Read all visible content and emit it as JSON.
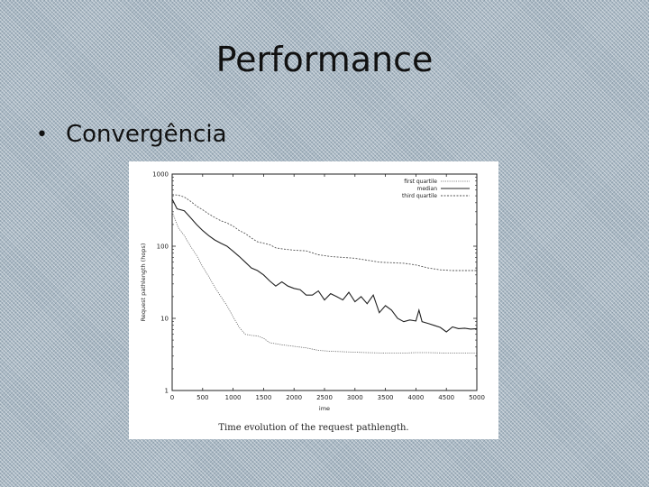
{
  "slide": {
    "title": "Performance",
    "bullet": "Convergência"
  },
  "figure": {
    "caption": "Time evolution of the request pathlength."
  },
  "chart_data": {
    "type": "line",
    "xlabel": "ime",
    "ylabel": "Request pathlength (hops)",
    "xlim": [
      0,
      5000
    ],
    "ylim": [
      1,
      1000
    ],
    "yscale": "log",
    "x_ticks": [
      "0",
      "500",
      "1000",
      "1500",
      "2000",
      "2500",
      "3000",
      "3500",
      "4000",
      "4500",
      "5000"
    ],
    "y_ticks": [
      "1",
      "10",
      "100",
      "1000"
    ],
    "legend_position": "top-right",
    "series": [
      {
        "name": "first quartile",
        "x": [
          0,
          100,
          200,
          300,
          400,
          500,
          600,
          700,
          800,
          900,
          1000,
          1100,
          1200,
          1300,
          1400,
          1500,
          1600,
          1800,
          2000,
          2200,
          2400,
          2600,
          2800,
          3000,
          3200,
          3500,
          3800,
          4000,
          4200,
          4500,
          4800,
          5000
        ],
        "y": [
          300,
          180,
          140,
          100,
          75,
          52,
          38,
          27,
          20,
          15,
          10.5,
          7.5,
          6,
          5.8,
          5.7,
          5.3,
          4.6,
          4.3,
          4.1,
          3.9,
          3.6,
          3.5,
          3.45,
          3.4,
          3.35,
          3.3,
          3.3,
          3.35,
          3.35,
          3.3,
          3.3,
          3.3
        ]
      },
      {
        "name": "median",
        "x": [
          0,
          80,
          200,
          300,
          400,
          500,
          600,
          700,
          800,
          900,
          1000,
          1100,
          1200,
          1300,
          1400,
          1500,
          1600,
          1700,
          1800,
          1900,
          2000,
          2100,
          2200,
          2300,
          2400,
          2500,
          2600,
          2700,
          2800,
          2900,
          3000,
          3100,
          3200,
          3300,
          3400,
          3500,
          3600,
          3700,
          3800,
          3900,
          4000,
          4050,
          4100,
          4200,
          4300,
          4400,
          4500,
          4600,
          4700,
          4800,
          4900,
          5000
        ],
        "y": [
          450,
          330,
          310,
          250,
          200,
          165,
          140,
          122,
          110,
          100,
          85,
          72,
          60,
          50,
          46,
          40,
          33,
          28,
          32,
          28,
          26,
          25,
          21,
          21,
          24,
          18,
          22,
          20,
          18,
          23,
          17,
          20,
          16,
          21,
          12,
          15,
          13,
          10,
          9,
          9.5,
          9.2,
          13,
          9,
          8.5,
          8,
          7.5,
          6.5,
          7.6,
          7.2,
          7.3,
          7.1,
          7.2
        ]
      },
      {
        "name": "third quartile",
        "x": [
          0,
          100,
          200,
          300,
          400,
          500,
          600,
          700,
          800,
          900,
          1000,
          1100,
          1200,
          1300,
          1400,
          1500,
          1600,
          1700,
          1800,
          1900,
          2000,
          2200,
          2400,
          2600,
          2800,
          3000,
          3200,
          3400,
          3600,
          3800,
          4000,
          4200,
          4400,
          4600,
          4800,
          5000
        ],
        "y": [
          520,
          510,
          480,
          420,
          360,
          320,
          280,
          250,
          225,
          210,
          190,
          165,
          150,
          130,
          115,
          110,
          105,
          95,
          92,
          90,
          88,
          86,
          76,
          72,
          70,
          68,
          64,
          60,
          59,
          58,
          55,
          50,
          47,
          46,
          46,
          46
        ]
      }
    ]
  }
}
